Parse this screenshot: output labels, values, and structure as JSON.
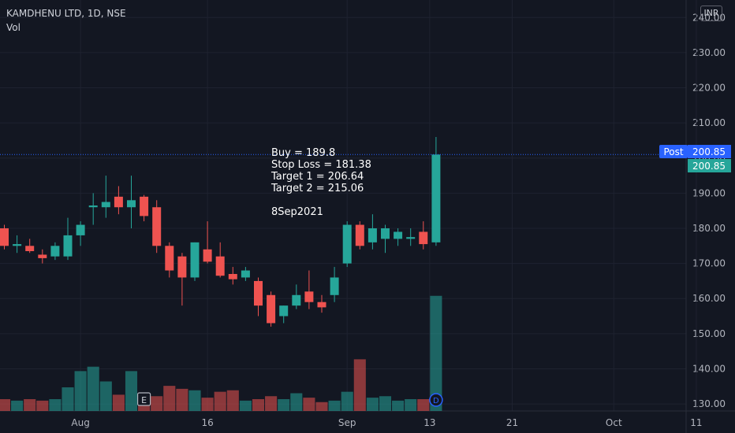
{
  "header": {
    "symbol": "KAMDHENU LTD, 1D, NSE",
    "indicator": "Vol",
    "currency": "INR"
  },
  "annotation": {
    "lines": [
      "Buy =  189.8",
      "Stop Loss = 181.38",
      "Target 1 =  206.64",
      "Target 2 =  215.06",
      "",
      "8Sep2021"
    ]
  },
  "price_labels": {
    "post_tag": "Post",
    "post_price": "200.85",
    "last_price": "200.85"
  },
  "markers": {
    "earnings": "E",
    "dividend": "D"
  },
  "colors": {
    "background": "#131722",
    "up": "#26a69a",
    "down": "#ef5350",
    "grid": "#1e2230",
    "axis_text": "#b2b5be",
    "post_tag": "#2962ff",
    "price_line": "#2962ff"
  },
  "chart_data": {
    "type": "candlestick",
    "y_axis": {
      "range": [
        128,
        245
      ],
      "ticks": [
        "130.00",
        "140.00",
        "150.00",
        "160.00",
        "170.00",
        "180.00",
        "190.00",
        "200.00",
        "210.00",
        "220.00",
        "230.00",
        "240.00"
      ],
      "tick_values": [
        130,
        140,
        150,
        160,
        170,
        180,
        190,
        200,
        210,
        220,
        230,
        240
      ]
    },
    "x_axis": {
      "labels": [
        {
          "text": "Aug",
          "after_bar": 6
        },
        {
          "text": "16",
          "after_bar": 16
        },
        {
          "text": "Sep",
          "after_bar": 27
        },
        {
          "text": "13",
          "after_bar": 33.5
        },
        {
          "text": "21",
          "after_bar": 40
        },
        {
          "text": "Oct",
          "after_bar": 48
        },
        {
          "text": "11",
          "after_bar": 54.5
        }
      ]
    },
    "candles": [
      {
        "o": 180,
        "h": 181,
        "l": 174,
        "c": 175
      },
      {
        "o": 175,
        "h": 178,
        "l": 173,
        "c": 175.5
      },
      {
        "o": 175,
        "h": 177,
        "l": 173,
        "c": 173.5
      },
      {
        "o": 172.5,
        "h": 174,
        "l": 170,
        "c": 171.5
      },
      {
        "o": 172,
        "h": 176,
        "l": 171,
        "c": 175
      },
      {
        "o": 172,
        "h": 183,
        "l": 171,
        "c": 178
      },
      {
        "o": 178,
        "h": 182,
        "l": 175,
        "c": 181
      },
      {
        "o": 186,
        "h": 190,
        "l": 181,
        "c": 186.5
      },
      {
        "o": 186,
        "h": 195,
        "l": 183,
        "c": 187.5
      },
      {
        "o": 189,
        "h": 192,
        "l": 184,
        "c": 186
      },
      {
        "o": 186,
        "h": 195,
        "l": 180,
        "c": 188
      },
      {
        "o": 189,
        "h": 189.5,
        "l": 182,
        "c": 183.5
      },
      {
        "o": 186,
        "h": 188,
        "l": 173,
        "c": 175
      },
      {
        "o": 175,
        "h": 176,
        "l": 166,
        "c": 168
      },
      {
        "o": 172,
        "h": 173,
        "l": 158,
        "c": 166
      },
      {
        "o": 166,
        "h": 176,
        "l": 165,
        "c": 176
      },
      {
        "o": 174,
        "h": 182,
        "l": 170,
        "c": 170.5
      },
      {
        "o": 172,
        "h": 176,
        "l": 166,
        "c": 166.5
      },
      {
        "o": 167,
        "h": 169,
        "l": 164,
        "c": 165.5
      },
      {
        "o": 166,
        "h": 169,
        "l": 165,
        "c": 168
      },
      {
        "o": 165,
        "h": 166,
        "l": 155,
        "c": 158
      },
      {
        "o": 161,
        "h": 162,
        "l": 152,
        "c": 153
      },
      {
        "o": 155,
        "h": 158,
        "l": 153,
        "c": 158
      },
      {
        "o": 158,
        "h": 164,
        "l": 157,
        "c": 161
      },
      {
        "o": 162,
        "h": 168,
        "l": 157,
        "c": 159
      },
      {
        "o": 159,
        "h": 161,
        "l": 156,
        "c": 157.5
      },
      {
        "o": 161,
        "h": 169,
        "l": 159,
        "c": 166
      },
      {
        "o": 170,
        "h": 182,
        "l": 169,
        "c": 181
      },
      {
        "o": 181,
        "h": 182,
        "l": 174,
        "c": 175
      },
      {
        "o": 176,
        "h": 184,
        "l": 174,
        "c": 180
      },
      {
        "o": 177,
        "h": 181,
        "l": 173,
        "c": 180
      },
      {
        "o": 177,
        "h": 180,
        "l": 175,
        "c": 179
      },
      {
        "o": 177,
        "h": 180,
        "l": 175,
        "c": 177.5
      },
      {
        "o": 179,
        "h": 182,
        "l": 174,
        "c": 175.5
      },
      {
        "o": 176,
        "h": 206,
        "l": 175,
        "c": 201
      }
    ],
    "volume": [
      8,
      7,
      8,
      7,
      8,
      16,
      27,
      30,
      20,
      11,
      27,
      8,
      10,
      17,
      15,
      14,
      9,
      13,
      14,
      7,
      8,
      10,
      8,
      12,
      9,
      6,
      7,
      13,
      35,
      9,
      10,
      7,
      8,
      8,
      78
    ],
    "volume_max": 80
  }
}
